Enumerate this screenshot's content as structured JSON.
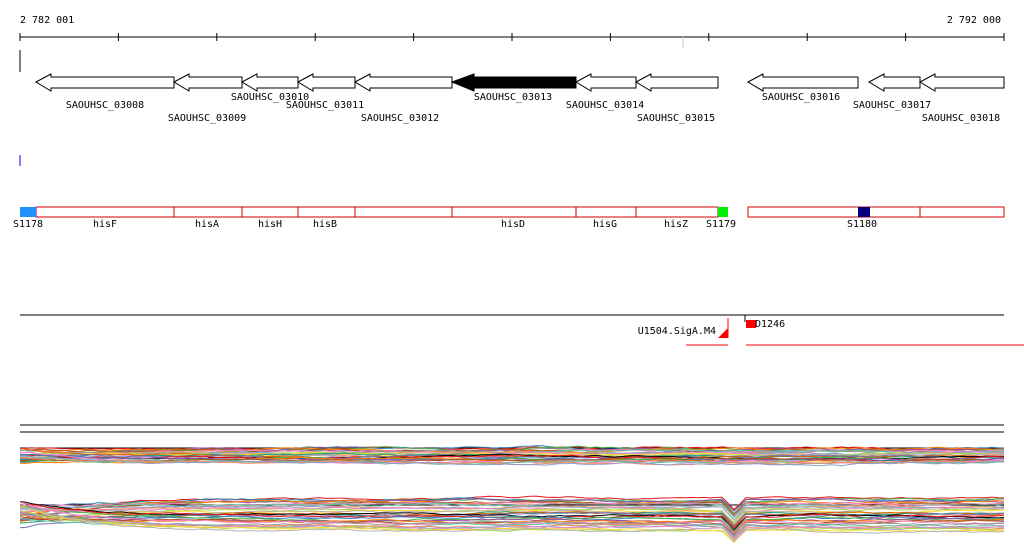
{
  "scale": {
    "start": "2 782 001",
    "end": "2 792 000"
  },
  "genes": [
    "SAOUHSC_03008",
    "SAOUHSC_03009",
    "SAOUHSC_03010",
    "SAOUHSC_03011",
    "SAOUHSC_03012",
    "SAOUHSC_03013",
    "SAOUHSC_03014",
    "SAOUHSC_03015",
    "SAOUHSC_03016",
    "SAOUHSC_03017",
    "SAOUHSC_03018"
  ],
  "segments": [
    "S1178",
    "hisF",
    "hisA",
    "hisH",
    "hisB",
    "hisD",
    "hisG",
    "hisZ",
    "S1179",
    "S1180"
  ],
  "features": {
    "promoter": "U1504.SigA.M4",
    "terminator": "D1246"
  }
}
